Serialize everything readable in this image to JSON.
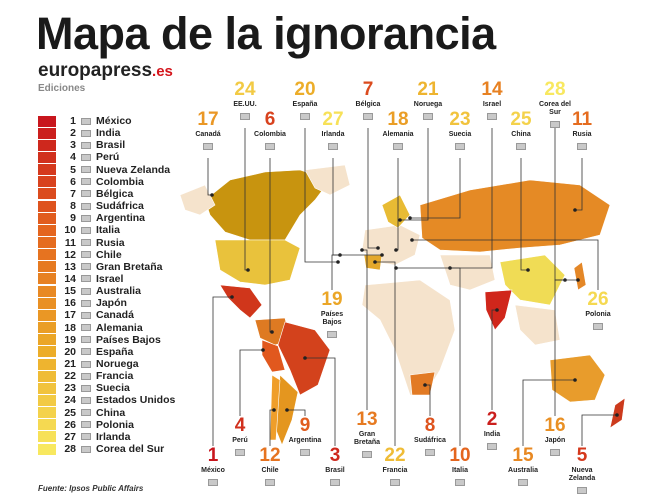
{
  "header": {
    "title": "Mapa de la ignorancia",
    "brand_main": "europapress",
    "brand_suffix": ".es",
    "edition": "Ediciones"
  },
  "legend": {
    "items": [
      {
        "rank": 1,
        "country": "México"
      },
      {
        "rank": 2,
        "country": "India"
      },
      {
        "rank": 3,
        "country": "Brasil"
      },
      {
        "rank": 4,
        "country": "Perú"
      },
      {
        "rank": 5,
        "country": "Nueva Zelanda"
      },
      {
        "rank": 6,
        "country": "Colombia"
      },
      {
        "rank": 7,
        "country": "Bélgica"
      },
      {
        "rank": 8,
        "country": "Sudáfrica"
      },
      {
        "rank": 9,
        "country": "Argentina"
      },
      {
        "rank": 10,
        "country": "Italia"
      },
      {
        "rank": 11,
        "country": "Rusia"
      },
      {
        "rank": 12,
        "country": "Chile"
      },
      {
        "rank": 13,
        "country": "Gran Bretaña"
      },
      {
        "rank": 14,
        "country": "Israel"
      },
      {
        "rank": 15,
        "country": "Australia"
      },
      {
        "rank": 16,
        "country": "Japón"
      },
      {
        "rank": 17,
        "country": "Canadá"
      },
      {
        "rank": 18,
        "country": "Alemania"
      },
      {
        "rank": 19,
        "country": "Países Bajos"
      },
      {
        "rank": 20,
        "country": "España"
      },
      {
        "rank": 21,
        "country": "Noruega"
      },
      {
        "rank": 22,
        "country": "Francia"
      },
      {
        "rank": 23,
        "country": "Suecia"
      },
      {
        "rank": 24,
        "country": "Estados Unidos"
      },
      {
        "rank": 25,
        "country": "China"
      },
      {
        "rank": 26,
        "country": "Polonia"
      },
      {
        "rank": 27,
        "country": "Irlanda"
      },
      {
        "rank": 28,
        "country": "Corea del Sur"
      }
    ]
  },
  "callouts": [
    {
      "rank": 17,
      "country": "Canadá"
    },
    {
      "rank": 24,
      "country": "EE.UU."
    },
    {
      "rank": 20,
      "country": "España"
    },
    {
      "rank": 6,
      "country": "Colombia"
    },
    {
      "rank": 7,
      "country": "Bélgica"
    },
    {
      "rank": 27,
      "country": "Irlanda"
    },
    {
      "rank": 18,
      "country": "Alemania"
    },
    {
      "rank": 21,
      "country": "Noruega"
    },
    {
      "rank": 23,
      "country": "Suecia"
    },
    {
      "rank": 14,
      "country": "Israel"
    },
    {
      "rank": 28,
      "country": "Corea del Sur"
    },
    {
      "rank": 25,
      "country": "China"
    },
    {
      "rank": 11,
      "country": "Rusia"
    },
    {
      "rank": 19,
      "country": "Países Bajos"
    },
    {
      "rank": 26,
      "country": "Polonia"
    },
    {
      "rank": 4,
      "country": "Perú"
    },
    {
      "rank": 9,
      "country": "Argentina"
    },
    {
      "rank": 13,
      "country": "Gran Bretaña"
    },
    {
      "rank": 8,
      "country": "Sudáfrica"
    },
    {
      "rank": 2,
      "country": "India"
    },
    {
      "rank": 16,
      "country": "Japón"
    },
    {
      "rank": 1,
      "country": "México"
    },
    {
      "rank": 12,
      "country": "Chile"
    },
    {
      "rank": 3,
      "country": "Brasil"
    },
    {
      "rank": 22,
      "country": "Francia"
    },
    {
      "rank": 10,
      "country": "Italia"
    },
    {
      "rank": 15,
      "country": "Australia"
    },
    {
      "rank": 5,
      "country": "Nueva Zelanda"
    }
  ],
  "source": "Fuente: Ipsos Public Affairs"
}
